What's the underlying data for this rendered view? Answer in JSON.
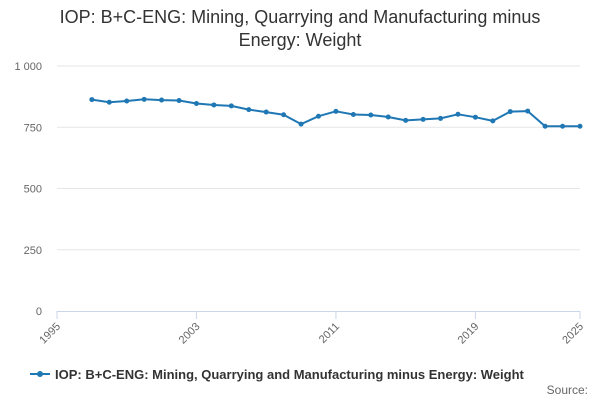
{
  "chart_data": {
    "type": "line",
    "title_lines": [
      "IOP: B+C-ENG: Mining, Quarrying and Manufacturing minus",
      "Energy: Weight"
    ],
    "x_ticks": [
      "1995",
      "2003",
      "2011",
      "2019",
      "2025"
    ],
    "y_ticks": [
      "0",
      "250",
      "500",
      "750",
      "1 000"
    ],
    "xlim": [
      1995,
      2025
    ],
    "ylim": [
      0,
      1000
    ],
    "grid": "horizontal",
    "legend_position": "bottom-left",
    "colors": {
      "series": "#1f77b4",
      "grid": "#e6e6e6",
      "axis": "#ccd6eb"
    },
    "series": [
      {
        "name": "IOP: B+C-ENG: Mining, Quarrying and Manufacturing minus Energy: Weight",
        "x": [
          1997,
          1998,
          1999,
          2000,
          2001,
          2002,
          2003,
          2004,
          2005,
          2006,
          2007,
          2008,
          2009,
          2010,
          2011,
          2012,
          2013,
          2014,
          2015,
          2016,
          2017,
          2018,
          2019,
          2020,
          2021,
          2022,
          2023,
          2024,
          2025
        ],
        "values": [
          863,
          852,
          857,
          864,
          861,
          859,
          847,
          841,
          837,
          822,
          812,
          801,
          763,
          795,
          815,
          802,
          800,
          792,
          778,
          782,
          786,
          803,
          791,
          776,
          814,
          816,
          754,
          754,
          754
        ]
      }
    ]
  },
  "credits": "Source:"
}
